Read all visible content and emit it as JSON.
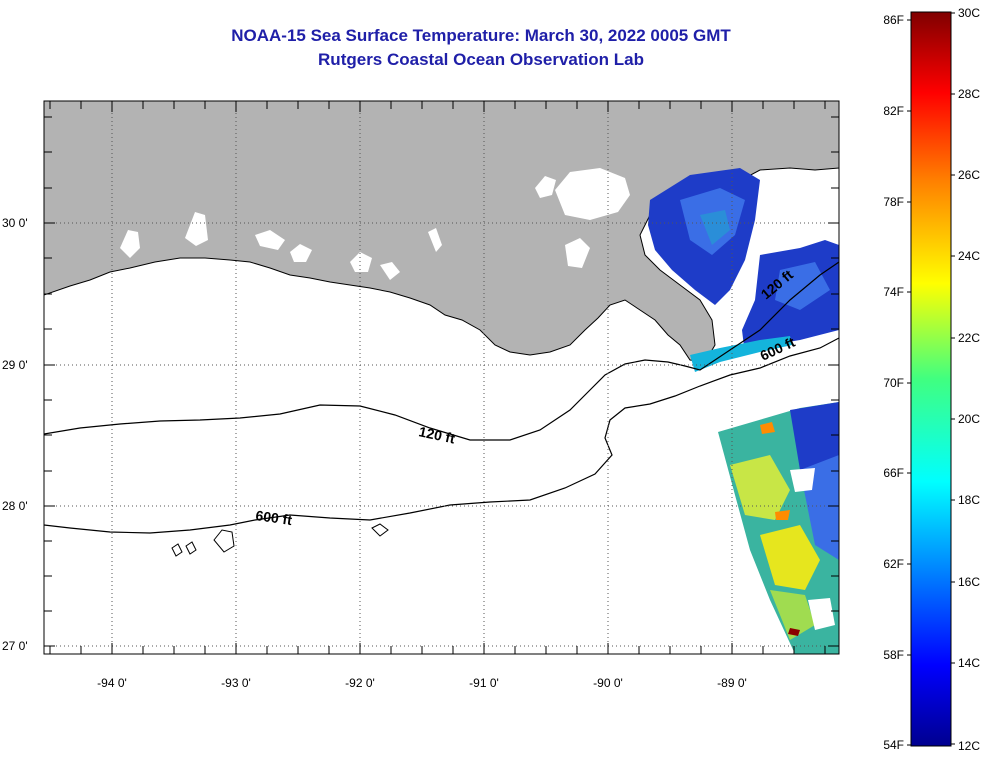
{
  "title": "NOAA-15 Sea Surface Temperature:  March 30, 2022 0005 GMT",
  "subtitle": "Rutgers Coastal Ocean Observation Lab",
  "lat_labels": [
    "30 0'",
    "29 0'",
    "28 0'",
    "27 0'"
  ],
  "lon_labels": [
    "-94 0'",
    "-93 0'",
    "-92 0'",
    "-91 0'",
    "-90 0'",
    "-89 0'"
  ],
  "contours": [
    {
      "label": "120 ft"
    },
    {
      "label": "600 ft"
    },
    {
      "label": "120 ft"
    },
    {
      "label": "600 ft"
    }
  ],
  "colorbar": {
    "f_labels": [
      "86F",
      "82F",
      "78F",
      "74F",
      "70F",
      "66F",
      "62F",
      "58F",
      "54F"
    ],
    "c_labels": [
      "30C",
      "28C",
      "26C",
      "24C",
      "22C",
      "20C",
      "18C",
      "16C",
      "14C",
      "12C"
    ]
  },
  "colors": {
    "title": "#1f1fa8",
    "land": "#b3b3b3",
    "cold": "#1e3cc8",
    "warm": "#e6e61e"
  }
}
